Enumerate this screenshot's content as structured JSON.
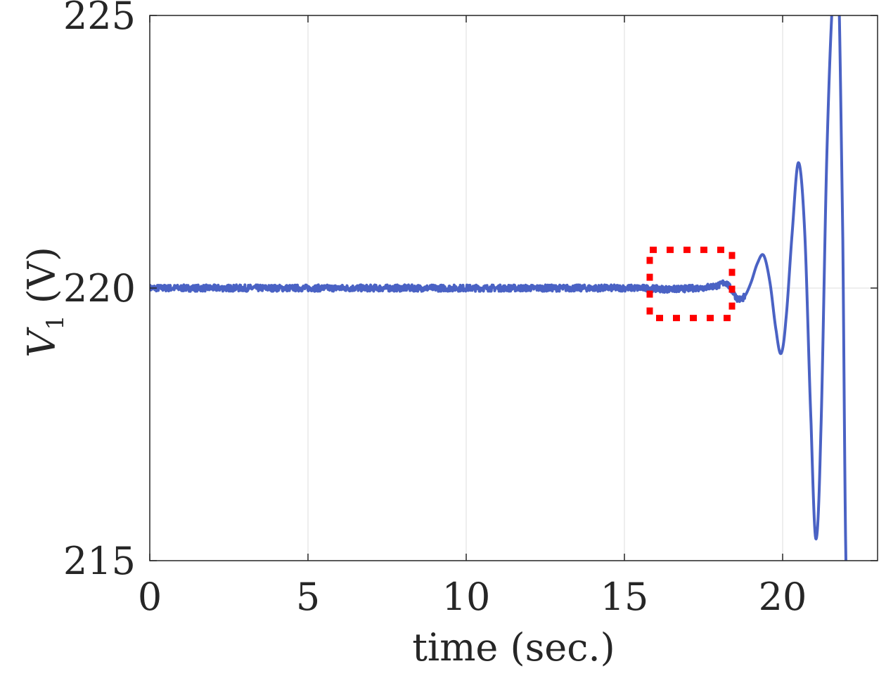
{
  "chart_data": {
    "type": "line",
    "xlabel": "time (sec.)",
    "ylabel_main": "V",
    "ylabel_sub": "1",
    "ylabel_unit": "(V)",
    "xlim": [
      0,
      23
    ],
    "ylim": [
      215,
      225
    ],
    "xticks": [
      0,
      5,
      10,
      15,
      20
    ],
    "yticks": [
      215,
      220,
      225
    ],
    "xtick_labels": [
      "0",
      "5",
      "10",
      "15",
      "20"
    ],
    "ytick_labels": [
      "215",
      "220",
      "225"
    ],
    "grid": true,
    "series": [
      {
        "color": "#4a62c4",
        "x": [
          0,
          2,
          4,
          6,
          8,
          10,
          12,
          14,
          15.5,
          16.5,
          17.5,
          18,
          18.2,
          18.4,
          18.6,
          18.8,
          19.0,
          19.2,
          19.4,
          19.6,
          19.8,
          19.95,
          20.1,
          20.3,
          20.5,
          20.7,
          20.9,
          21.05,
          21.2,
          21.4,
          21.6,
          21.75,
          21.9,
          22.0
        ],
        "y": [
          220,
          220,
          220,
          220,
          220,
          220,
          220,
          220,
          220,
          219.98,
          220.01,
          220.05,
          220.1,
          219.95,
          219.8,
          219.85,
          220.1,
          220.45,
          220.6,
          220.1,
          219.2,
          218.8,
          219.4,
          221.0,
          222.3,
          221.0,
          217.5,
          215.4,
          217.2,
          222.5,
          225.5,
          226.0,
          221.0,
          215.0
        ]
      }
    ],
    "annotation_box": {
      "x": [
        15.8,
        18.4
      ],
      "y": [
        219.45,
        220.7
      ],
      "color": "#ff0000"
    }
  }
}
